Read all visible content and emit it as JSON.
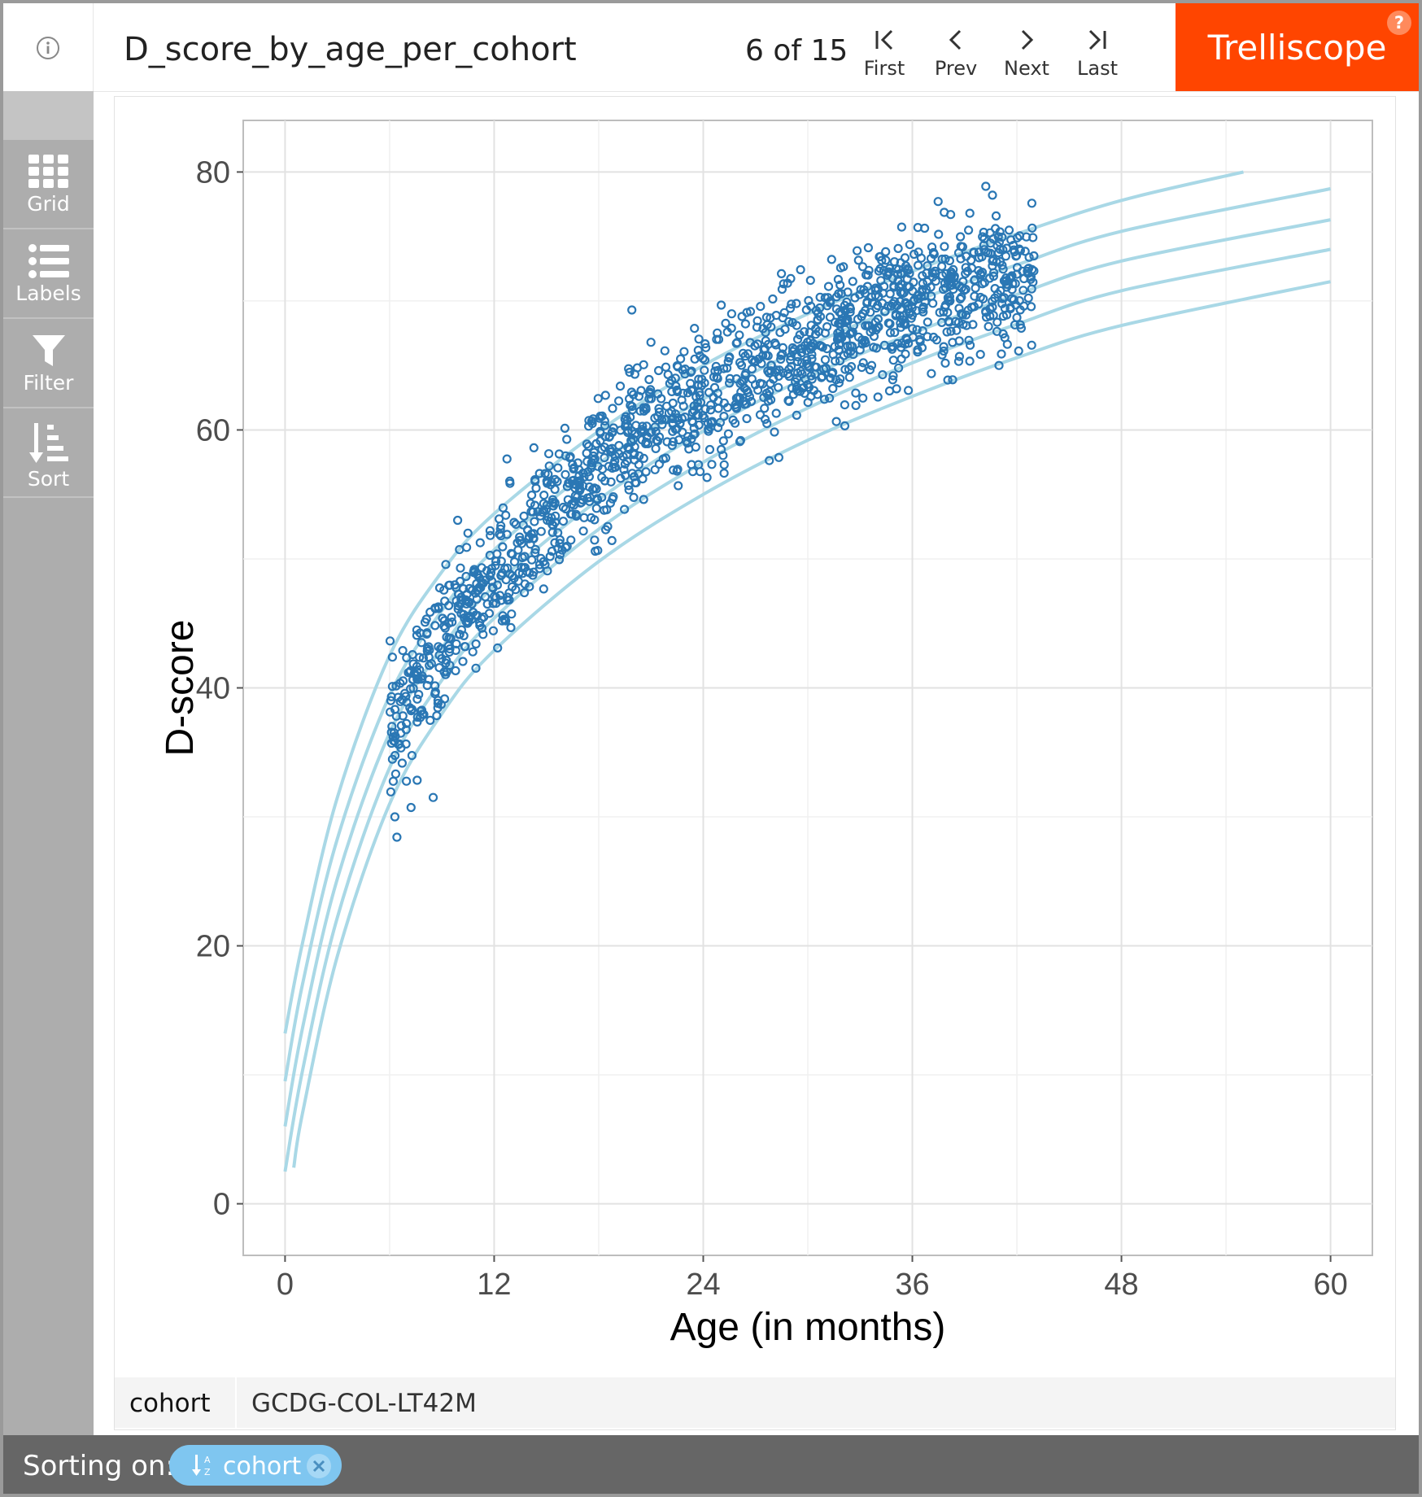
{
  "header": {
    "title": "D_score_by_age_per_cohort",
    "page_count": "6 of 15",
    "nav": {
      "first": "First",
      "prev": "Prev",
      "next": "Next",
      "last": "Last"
    },
    "brand": "Trelliscope"
  },
  "sidebar": {
    "items": [
      {
        "label": "Grid",
        "icon": "grid-icon"
      },
      {
        "label": "Labels",
        "icon": "list-icon"
      },
      {
        "label": "Filter",
        "icon": "funnel-icon"
      },
      {
        "label": "Sort",
        "icon": "sort-icon"
      }
    ]
  },
  "panel": {
    "cond_name": "cohort",
    "cond_value": "GCDG-COL-LT42M"
  },
  "footer": {
    "sort_label": "Sorting on:",
    "sort_chip": "cohort"
  },
  "colors": {
    "brand": "#ff4500",
    "points": "#2a77b4",
    "reference_curves": "#a9d8e6",
    "sort_chip": "#7fc6f0"
  },
  "chart_data": {
    "type": "scatter",
    "xlabel": "Age (in months)",
    "ylabel": "D-score",
    "xlim": [
      -2.4,
      50
    ],
    "ylim": [
      -4,
      84
    ],
    "xticks": [
      0,
      12,
      24,
      36,
      48,
      60
    ],
    "yticks": [
      0,
      20,
      40,
      60,
      80
    ],
    "grid": true,
    "reference_curves": [
      {
        "x": [
          0.0,
          1,
          3,
          6,
          9,
          12,
          18,
          24,
          30,
          36,
          42,
          48,
          55
        ],
        "y": [
          13.2,
          20.2,
          31.5,
          42.5,
          49.0,
          53.5,
          59.9,
          65.0,
          69.0,
          72.3,
          75.2,
          77.8,
          80.0
        ]
      },
      {
        "x": [
          0.0,
          1,
          3,
          6,
          9,
          12,
          18,
          24,
          30,
          36,
          42,
          48,
          60
        ],
        "y": [
          9.5,
          17.0,
          28.3,
          39.4,
          46.0,
          50.7,
          57.4,
          62.4,
          66.5,
          69.9,
          72.8,
          75.4,
          78.7
        ]
      },
      {
        "x": [
          0.0,
          1,
          3,
          6,
          9,
          12,
          18,
          24,
          30,
          36,
          42,
          48,
          60
        ],
        "y": [
          6.0,
          13.6,
          25.2,
          36.5,
          43.1,
          47.9,
          54.6,
          59.9,
          64.1,
          67.5,
          70.5,
          73.1,
          76.3
        ]
      },
      {
        "x": [
          0.0,
          1,
          3,
          6,
          9,
          12,
          18,
          24,
          30,
          36,
          42,
          48,
          60
        ],
        "y": [
          2.5,
          10.3,
          22.2,
          33.8,
          40.6,
          45.4,
          52.3,
          57.5,
          61.7,
          65.2,
          68.2,
          70.8,
          74.0
        ]
      },
      {
        "x": [
          0.5,
          1,
          3,
          6,
          9,
          12,
          18,
          24,
          30,
          36,
          42,
          48,
          60
        ],
        "y": [
          2.8,
          7.0,
          19.2,
          31.0,
          38.0,
          42.9,
          49.8,
          55.0,
          59.2,
          62.6,
          65.6,
          68.1,
          71.5
        ]
      }
    ],
    "points_summary": {
      "count_approx": 1500,
      "age_range": [
        6,
        43
      ],
      "central_trend": {
        "x": [
          6,
          9,
          12,
          18,
          24,
          30,
          36,
          42
        ],
        "y": [
          36.5,
          43.5,
          48.5,
          57.0,
          62.5,
          66.5,
          70.0,
          72.0
        ]
      },
      "spread_sd": 2.6,
      "outliers": [
        {
          "x": 19.9,
          "y": 69.3
        },
        {
          "x": 21.0,
          "y": 66.8
        },
        {
          "x": 8.5,
          "y": 31.5
        },
        {
          "x": 6.3,
          "y": 30.0
        },
        {
          "x": 17.8,
          "y": 50.6
        },
        {
          "x": 12.2,
          "y": 43.1
        },
        {
          "x": 40.6,
          "y": 78.2
        },
        {
          "x": 39.3,
          "y": 76.8
        },
        {
          "x": 38.2,
          "y": 76.7
        },
        {
          "x": 34.9,
          "y": 64.2
        },
        {
          "x": 38.7,
          "y": 65.7
        },
        {
          "x": 25.2,
          "y": 57.3
        }
      ]
    }
  }
}
